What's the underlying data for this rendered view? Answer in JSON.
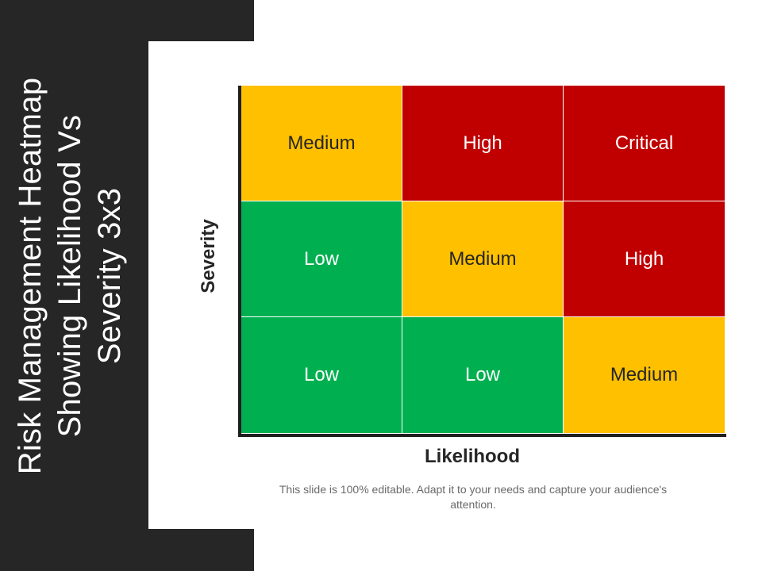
{
  "slide": {
    "title": "Risk Management Heatmap\nShowing Likelihood Vs\nSeverity 3x3",
    "caption": "This slide is 100% editable. Adapt it to your needs and capture your audience's attention."
  },
  "colors": {
    "medium": "#FFC000",
    "high": "#C00000",
    "critical": "#C00000",
    "low": "#00B050",
    "sidebar": "#262626"
  },
  "chart_data": {
    "type": "heatmap",
    "xlabel": "Likelihood",
    "ylabel": "Severity",
    "rows": [
      [
        "Medium",
        "High",
        "Critical"
      ],
      [
        "Low",
        "Medium",
        "High"
      ],
      [
        "Low",
        "Low",
        "Medium"
      ]
    ],
    "grid": true
  }
}
